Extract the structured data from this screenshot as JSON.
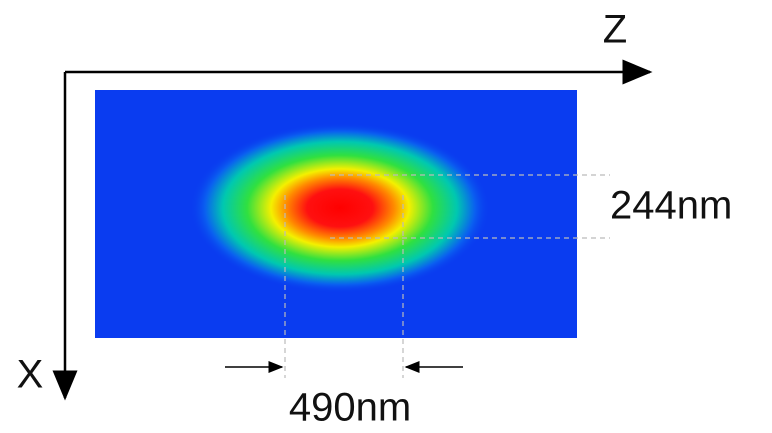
{
  "axes": {
    "horizontal": "Z",
    "vertical": "X"
  },
  "dimensions": {
    "height": "244nm",
    "width": "490nm"
  }
}
